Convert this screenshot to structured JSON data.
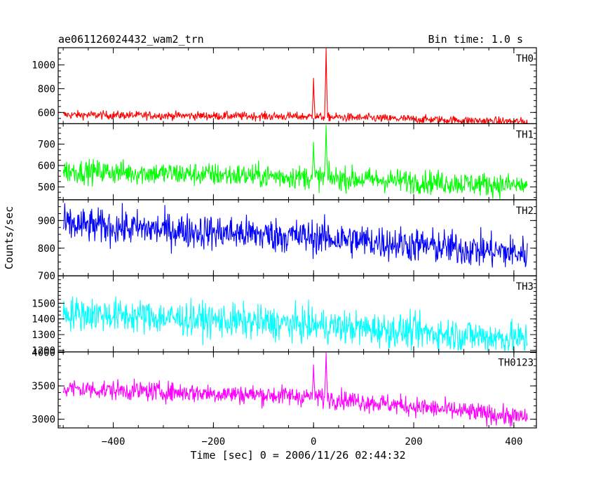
{
  "chart_data": {
    "type": "line",
    "title": "ae061126024432_wam2_trn",
    "subtitle": "Bin time: 1.0 s",
    "xlabel": "Time [sec] 0 = 2006/11/26 02:44:32",
    "ylabel": "Counts/sec",
    "xlim": [
      -510,
      445
    ],
    "xticks": [
      -400,
      -200,
      0,
      200,
      400
    ],
    "xtick_labels": [
      "−400",
      "−200",
      "0",
      "200",
      "400"
    ],
    "x_start": -500,
    "x_end": 427,
    "grid": false,
    "panels": [
      {
        "name": "TH0",
        "color": "#ff0000",
        "ylim": [
          505,
          1145
        ],
        "yticks": [
          600,
          800,
          1000
        ],
        "ytick_labels": [
          "600",
          "800",
          "1000"
        ],
        "trend": [
          [
            -500,
            580
          ],
          [
            0,
            565
          ],
          [
            427,
            520
          ]
        ],
        "noise": 18,
        "spikes": [
          {
            "x": 0,
            "y": 890
          },
          {
            "x": 25,
            "y": 1140
          }
        ]
      },
      {
        "name": "TH1",
        "color": "#00ff00",
        "ylim": [
          440,
          795
        ],
        "yticks": [
          500,
          600,
          700
        ],
        "ytick_labels": [
          "500",
          "600",
          "700"
        ],
        "trend": [
          [
            -500,
            575
          ],
          [
            0,
            545
          ],
          [
            427,
            505
          ]
        ],
        "noise": 28,
        "spikes": [
          {
            "x": 0,
            "y": 710
          },
          {
            "x": 25,
            "y": 790
          }
        ]
      },
      {
        "name": "TH2",
        "color": "#0000ff",
        "ylim": [
          700,
          975
        ],
        "yticks": [
          700,
          800,
          900
        ],
        "ytick_labels": [
          "700",
          "800",
          "900"
        ],
        "trend": [
          [
            -500,
            885
          ],
          [
            0,
            840
          ],
          [
            427,
            780
          ]
        ],
        "noise": 32,
        "spikes": []
      },
      {
        "name": "TH3",
        "color": "#00ffff",
        "ylim": [
          1190,
          1675
        ],
        "yticks": [
          1200,
          1300,
          1400,
          1500
        ],
        "ytick_labels": [
          "1200",
          "1300",
          "1400",
          "1500"
        ],
        "trend": [
          [
            -500,
            1440
          ],
          [
            0,
            1360
          ],
          [
            427,
            1270
          ]
        ],
        "noise": 55,
        "spikes": []
      },
      {
        "name": "TH0123",
        "color": "#ff00ff",
        "ylim": [
          2870,
          4010
        ],
        "yticks": [
          3000,
          3500,
          4000
        ],
        "ytick_labels": [
          "3000",
          "3500",
          "4000"
        ],
        "trend": [
          [
            -500,
            3460
          ],
          [
            0,
            3340
          ],
          [
            427,
            3020
          ]
        ],
        "noise": 75,
        "spikes": [
          {
            "x": 0,
            "y": 3820
          },
          {
            "x": 25,
            "y": 4000
          }
        ]
      }
    ]
  }
}
